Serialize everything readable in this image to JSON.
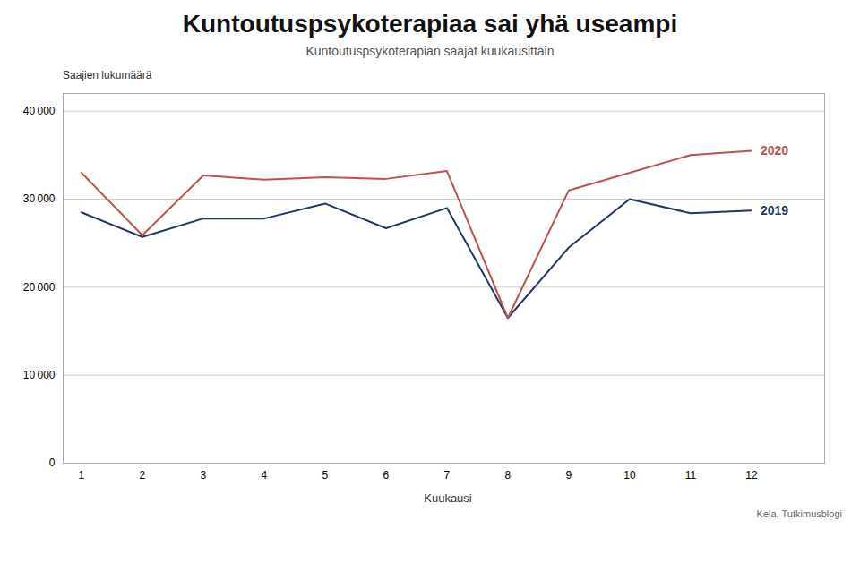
{
  "chart_data": {
    "type": "line",
    "title": "Kuntoutuspsykoterapiaa sai yhä useampi",
    "subtitle": "Kuntoutuspsykoterapian saajat kuukausittain",
    "ylabel": "Saajien lukumäärä",
    "xlabel": "Kuukausi",
    "source": "Kela, Tutkimusblogi",
    "x": [
      1,
      2,
      3,
      4,
      5,
      6,
      7,
      8,
      9,
      10,
      11,
      12
    ],
    "series": [
      {
        "name": "2019",
        "color": "#1f3864",
        "values": [
          28500,
          25700,
          27800,
          27800,
          29500,
          26700,
          29000,
          16500,
          24500,
          30000,
          28400,
          28700
        ]
      },
      {
        "name": "2020",
        "color": "#c0504d",
        "values": [
          33000,
          25900,
          32700,
          32200,
          32500,
          32300,
          33200,
          16500,
          31000,
          33000,
          35000,
          35500
        ]
      }
    ],
    "xlim": [
      0.7,
      13.2
    ],
    "xticks": [
      1,
      2,
      3,
      4,
      5,
      6,
      7,
      8,
      9,
      10,
      11,
      12
    ],
    "ylim": [
      0,
      42000
    ],
    "yticks": [
      0,
      {
        "value": 10000,
        "label": "10 000"
      },
      {
        "value": 20000,
        "label": "20 000"
      },
      {
        "value": 30000,
        "label": "30 000"
      },
      {
        "value": 40000,
        "label": "40 000"
      }
    ],
    "grid": true
  }
}
